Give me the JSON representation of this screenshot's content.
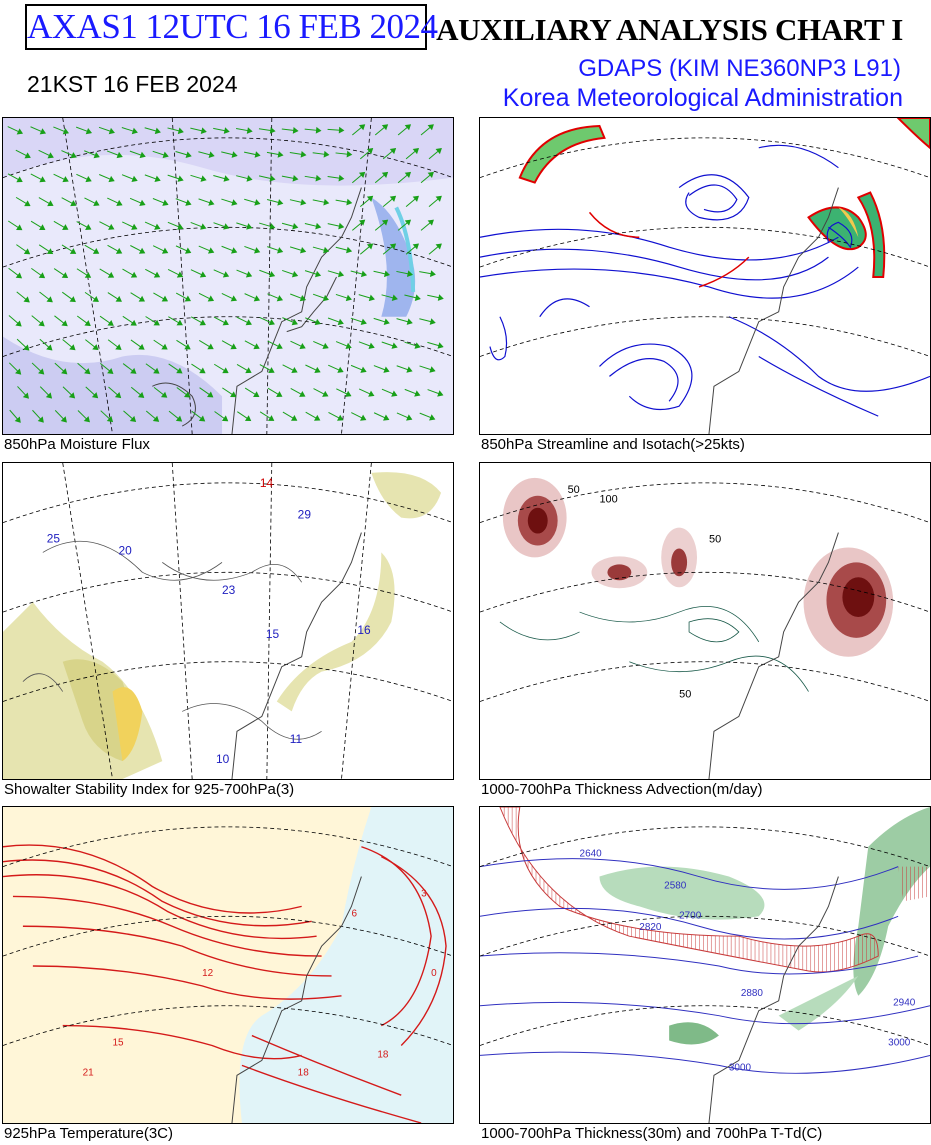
{
  "header": {
    "product_code": "AXAS1  12UTC 16 FEB 2024",
    "title": "AUXILIARY ANALYSIS CHART  I",
    "valid_time_kst": "21KST 16 FEB 2024",
    "model": "GDAPS (KIM NE360NP3 L91)",
    "agency": "Korea Meteorological Administration"
  },
  "panels": [
    {
      "id": "moisture-flux",
      "caption": "850hPa Moisture Flux"
    },
    {
      "id": "streamline",
      "caption": "850hPa Streamline and Isotach(>25kts)"
    },
    {
      "id": "showalter",
      "caption": "Showalter Stability Index for 925-700hPa(3)"
    },
    {
      "id": "thickness-adv",
      "caption": "1000-700hPa Thickness Advection(m/day)"
    },
    {
      "id": "temperature",
      "caption": "925hPa Temperature(3C)"
    },
    {
      "id": "thickness",
      "caption": "1000-700hPa Thickness(30m) and 700hPa T-Td(C)"
    }
  ],
  "labels": {
    "showalter": [
      "14",
      "29",
      "25",
      "20",
      "23",
      "15",
      "16",
      "10",
      "11"
    ],
    "thickness_adv": [
      "100",
      "50",
      "50",
      "50"
    ],
    "temperature": [
      "18",
      "18",
      "21",
      "15",
      "12",
      "6",
      "3",
      "0"
    ],
    "thickness": [
      "2640",
      "2580",
      "2700",
      "2820",
      "2880",
      "2940",
      "3000",
      "3000"
    ]
  },
  "colors": {
    "header_blue": "#1a1aff",
    "streamline": "#1010d0",
    "isotach_green": "#3cb371",
    "isotach_red": "#e00000",
    "contour_red": "#d41a1a",
    "warm_fill": "#fff6d8",
    "sea_fill": "#e1f4f8"
  }
}
